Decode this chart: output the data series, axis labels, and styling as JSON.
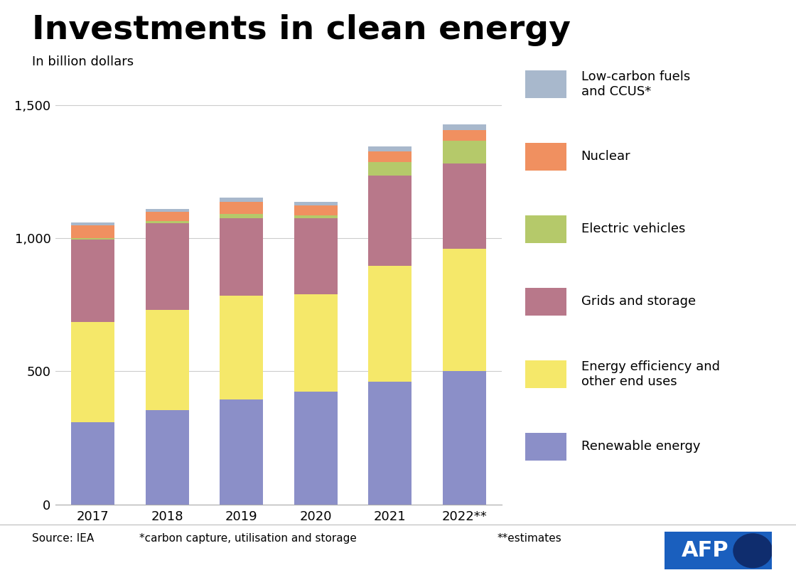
{
  "title": "Investments in clean energy",
  "subtitle": "In billion dollars",
  "years": [
    "2017",
    "2018",
    "2019",
    "2020",
    "2021",
    "2022**"
  ],
  "series": [
    {
      "label": "Renewable energy",
      "color": "#8b8fc8",
      "values": [
        310,
        355,
        395,
        425,
        460,
        500
      ]
    },
    {
      "label": "Energy efficiency and\nother end uses",
      "color": "#f5e86a",
      "values": [
        375,
        375,
        390,
        365,
        435,
        460
      ]
    },
    {
      "label": "Grids and storage",
      "color": "#b8788a",
      "values": [
        310,
        325,
        290,
        285,
        340,
        320
      ]
    },
    {
      "label": "Electric vehicles",
      "color": "#b5c96a",
      "values": [
        5,
        8,
        15,
        10,
        50,
        85
      ]
    },
    {
      "label": "Nuclear",
      "color": "#f09060",
      "values": [
        48,
        35,
        45,
        38,
        40,
        40
      ]
    },
    {
      "label": "Low-carbon fuels\nand CCUS*",
      "color": "#a8b8cc",
      "values": [
        10,
        12,
        18,
        12,
        18,
        22
      ]
    }
  ],
  "ylim": [
    0,
    1600
  ],
  "yticks": [
    0,
    500,
    1000,
    1500
  ],
  "ytick_labels": [
    "0",
    "500",
    "1,000",
    "1,500"
  ],
  "footer_left": "Source: IEA",
  "footer_mid": "*carbon capture, utilisation and storage",
  "footer_right": "**estimates",
  "background_color": "#ffffff",
  "title_fontsize": 34,
  "subtitle_fontsize": 13,
  "tick_fontsize": 13,
  "legend_fontsize": 13,
  "bar_width": 0.58,
  "afp_blue": "#1a5fbe",
  "afp_dark": "#0f2d6e"
}
